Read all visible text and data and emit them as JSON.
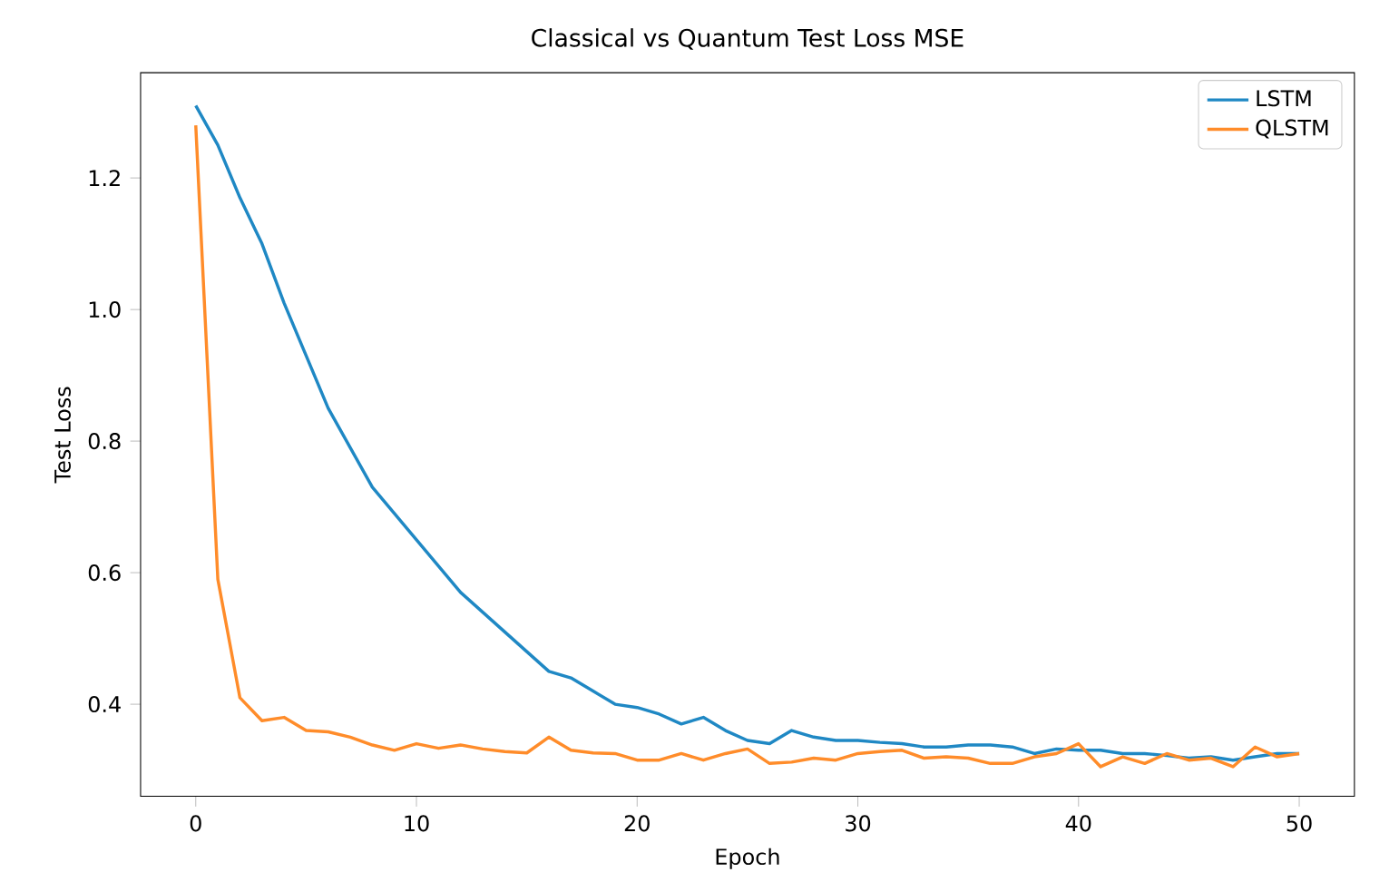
{
  "chart_data": {
    "type": "line",
    "title": "Classical vs Quantum Test Loss MSE",
    "xlabel": "Epoch",
    "ylabel": "Test Loss",
    "x": [
      0,
      1,
      2,
      3,
      4,
      5,
      6,
      7,
      8,
      9,
      10,
      11,
      12,
      13,
      14,
      15,
      16,
      17,
      18,
      19,
      20,
      21,
      22,
      23,
      24,
      25,
      26,
      27,
      28,
      29,
      30,
      31,
      32,
      33,
      34,
      35,
      36,
      37,
      38,
      39,
      40,
      41,
      42,
      43,
      44,
      45,
      46,
      47,
      48,
      49,
      50
    ],
    "series": [
      {
        "name": "LSTM",
        "color": "#1f88c4",
        "values": [
          1.31,
          1.25,
          1.17,
          1.1,
          1.01,
          0.93,
          0.85,
          0.79,
          0.73,
          0.69,
          0.65,
          0.61,
          0.57,
          0.54,
          0.51,
          0.48,
          0.45,
          0.44,
          0.42,
          0.4,
          0.395,
          0.385,
          0.37,
          0.38,
          0.36,
          0.345,
          0.34,
          0.36,
          0.35,
          0.345,
          0.345,
          0.342,
          0.34,
          0.335,
          0.335,
          0.338,
          0.338,
          0.335,
          0.325,
          0.332,
          0.33,
          0.33,
          0.325,
          0.325,
          0.322,
          0.318,
          0.32,
          0.315,
          0.32,
          0.325,
          0.325
        ]
      },
      {
        "name": "QLSTM",
        "color": "#ff8c2a",
        "values": [
          1.28,
          0.59,
          0.41,
          0.375,
          0.38,
          0.36,
          0.358,
          0.35,
          0.338,
          0.33,
          0.34,
          0.333,
          0.338,
          0.332,
          0.328,
          0.326,
          0.35,
          0.33,
          0.326,
          0.325,
          0.315,
          0.315,
          0.325,
          0.315,
          0.325,
          0.332,
          0.31,
          0.312,
          0.318,
          0.315,
          0.325,
          0.328,
          0.33,
          0.318,
          0.32,
          0.318,
          0.31,
          0.31,
          0.32,
          0.325,
          0.34,
          0.305,
          0.32,
          0.31,
          0.325,
          0.315,
          0.318,
          0.305,
          0.335,
          0.32,
          0.325
        ]
      }
    ],
    "xlim": [
      -2.5,
      52.5
    ],
    "ylim": [
      0.26,
      1.36
    ],
    "xticks": [
      0,
      10,
      20,
      30,
      40,
      50
    ],
    "yticks": [
      0.4,
      0.6,
      0.8,
      {
        "value": 1.0,
        "label": "1.0"
      },
      1.2
    ],
    "grid": false,
    "legend": "top right",
    "line_style": "solid",
    "marker": "none"
  }
}
